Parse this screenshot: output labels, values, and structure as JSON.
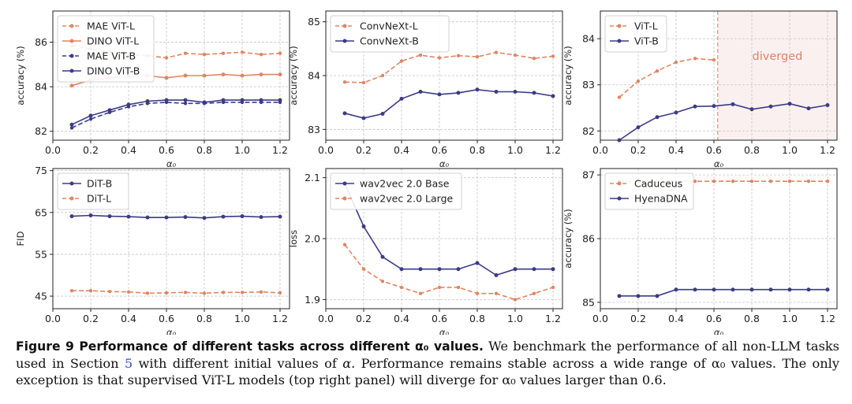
{
  "colors": {
    "orange": "#e08562",
    "navy": "#3b3b86",
    "diverged_fill": "#fbf0f0",
    "diverged_text": "#d98367"
  },
  "chart_data": [
    {
      "type": "line",
      "xlabel": "α₀",
      "ylabel": "accuracy (%)",
      "xlim": [
        0.0,
        1.25
      ],
      "ylim": [
        81.6,
        87.4
      ],
      "xticks": [
        0.0,
        0.2,
        0.4,
        0.6,
        0.8,
        1.0,
        1.2
      ],
      "yticks": [
        82,
        84,
        86
      ],
      "grid": true,
      "legend": "top-left",
      "x": [
        0.1,
        0.2,
        0.3,
        0.4,
        0.5,
        0.6,
        0.7,
        0.8,
        0.9,
        1.0,
        1.1,
        1.2
      ],
      "series": [
        {
          "name": "MAE ViT-L",
          "color": "orange",
          "dashed": true,
          "values": [
            85.85,
            85.7,
            85.55,
            85.45,
            85.4,
            85.3,
            85.5,
            85.45,
            85.5,
            85.55,
            85.45,
            85.5
          ]
        },
        {
          "name": "DINO ViT-L",
          "color": "orange",
          "dashed": false,
          "values": [
            84.05,
            84.3,
            84.4,
            84.45,
            84.5,
            84.4,
            84.5,
            84.5,
            84.55,
            84.5,
            84.55,
            84.55
          ]
        },
        {
          "name": "MAE ViT-B",
          "color": "navy",
          "dashed": true,
          "values": [
            82.15,
            82.55,
            82.85,
            83.1,
            83.25,
            83.3,
            83.25,
            83.25,
            83.3,
            83.3,
            83.3,
            83.3
          ]
        },
        {
          "name": "DINO ViT-B",
          "color": "navy",
          "dashed": false,
          "values": [
            82.3,
            82.7,
            82.95,
            83.2,
            83.35,
            83.4,
            83.4,
            83.3,
            83.4,
            83.4,
            83.4,
            83.4
          ]
        }
      ]
    },
    {
      "type": "line",
      "xlabel": "α₀",
      "ylabel": "accuracy (%)",
      "xlim": [
        0.0,
        1.25
      ],
      "ylim": [
        82.8,
        85.2
      ],
      "xticks": [
        0.0,
        0.2,
        0.4,
        0.6,
        0.8,
        1.0,
        1.2
      ],
      "yticks": [
        83,
        84,
        85
      ],
      "grid": true,
      "legend": "top-left",
      "x": [
        0.1,
        0.2,
        0.3,
        0.4,
        0.5,
        0.6,
        0.7,
        0.8,
        0.9,
        1.0,
        1.1,
        1.2
      ],
      "series": [
        {
          "name": "ConvNeXt-L",
          "color": "orange",
          "dashed": true,
          "values": [
            83.88,
            83.87,
            84.0,
            84.27,
            84.38,
            84.33,
            84.37,
            84.35,
            84.43,
            84.38,
            84.32,
            84.36
          ]
        },
        {
          "name": "ConvNeXt-B",
          "color": "navy",
          "dashed": false,
          "values": [
            83.3,
            83.21,
            83.29,
            83.57,
            83.7,
            83.65,
            83.68,
            83.74,
            83.7,
            83.7,
            83.68,
            83.62
          ]
        }
      ]
    },
    {
      "type": "line",
      "xlabel": "α₀",
      "ylabel": "accuracy (%)",
      "xlim": [
        0.0,
        1.25
      ],
      "ylim": [
        81.8,
        84.6
      ],
      "xticks": [
        0.0,
        0.2,
        0.4,
        0.6,
        0.8,
        1.0,
        1.2
      ],
      "yticks": [
        82,
        83,
        84
      ],
      "grid": true,
      "legend": "top-left",
      "x": [
        0.1,
        0.2,
        0.3,
        0.4,
        0.5,
        0.6,
        0.7,
        0.8,
        0.9,
        1.0,
        1.1,
        1.2
      ],
      "annotation": {
        "text": "diverged",
        "x_from": 0.62,
        "x_to": 1.25
      },
      "series": [
        {
          "name": "ViT-L",
          "color": "orange",
          "dashed": true,
          "x": [
            0.1,
            0.2,
            0.3,
            0.4,
            0.5,
            0.6
          ],
          "values": [
            82.73,
            83.08,
            83.3,
            83.49,
            83.57,
            83.54
          ]
        },
        {
          "name": "ViT-B",
          "color": "navy",
          "dashed": false,
          "values": [
            81.8,
            82.08,
            82.3,
            82.4,
            82.53,
            82.54,
            82.58,
            82.47,
            82.53,
            82.59,
            82.49,
            82.56
          ]
        }
      ]
    },
    {
      "type": "line",
      "xlabel": "α₀",
      "ylabel": "FID",
      "xlim": [
        0.0,
        1.25
      ],
      "ylim": [
        42.0,
        75.5
      ],
      "xticks": [
        0.0,
        0.2,
        0.4,
        0.6,
        0.8,
        1.0,
        1.2
      ],
      "yticks": [
        45,
        55,
        65,
        75
      ],
      "grid": true,
      "legend": "top-left",
      "x": [
        0.1,
        0.2,
        0.3,
        0.4,
        0.5,
        0.6,
        0.7,
        0.8,
        0.9,
        1.0,
        1.1,
        1.2
      ],
      "series": [
        {
          "name": "DiT-B",
          "color": "navy",
          "dashed": false,
          "values": [
            64.1,
            64.3,
            64.1,
            64.0,
            63.8,
            63.8,
            63.9,
            63.7,
            64.0,
            64.1,
            63.9,
            64.0
          ]
        },
        {
          "name": "DiT-L",
          "color": "orange",
          "dashed": true,
          "values": [
            46.3,
            46.3,
            46.1,
            46.0,
            45.7,
            45.8,
            45.9,
            45.7,
            45.9,
            45.9,
            46.0,
            45.8
          ]
        }
      ]
    },
    {
      "type": "line",
      "xlabel": "α₀",
      "ylabel": "loss",
      "xlim": [
        0.0,
        1.25
      ],
      "ylim": [
        1.885,
        2.115
      ],
      "xticks": [
        0.0,
        0.2,
        0.4,
        0.6,
        0.8,
        1.0,
        1.2
      ],
      "yticks": [
        1.9,
        2.0,
        2.1
      ],
      "grid": true,
      "legend": "top-left",
      "x": [
        0.1,
        0.2,
        0.3,
        0.4,
        0.5,
        0.6,
        0.7,
        0.8,
        0.9,
        1.0,
        1.1,
        1.2
      ],
      "series": [
        {
          "name": "wav2vec 2.0 Base",
          "color": "navy",
          "dashed": false,
          "values": [
            2.09,
            2.02,
            1.97,
            1.95,
            1.95,
            1.95,
            1.95,
            1.96,
            1.94,
            1.95,
            1.95,
            1.95
          ]
        },
        {
          "name": "wav2vec 2.0 Large",
          "color": "orange",
          "dashed": true,
          "values": [
            1.99,
            1.95,
            1.93,
            1.92,
            1.91,
            1.92,
            1.92,
            1.91,
            1.91,
            1.9,
            1.91,
            1.92
          ]
        }
      ]
    },
    {
      "type": "line",
      "xlabel": "α₀",
      "ylabel": "accuracy (%)",
      "xlim": [
        0.0,
        1.25
      ],
      "ylim": [
        84.9,
        87.1
      ],
      "xticks": [
        0.0,
        0.2,
        0.4,
        0.6,
        0.8,
        1.0,
        1.2
      ],
      "yticks": [
        85,
        86,
        87
      ],
      "grid": true,
      "legend": "top-left",
      "x": [
        0.1,
        0.2,
        0.3,
        0.4,
        0.5,
        0.6,
        0.7,
        0.8,
        0.9,
        1.0,
        1.1,
        1.2
      ],
      "series": [
        {
          "name": "Caduceus",
          "color": "orange",
          "dashed": true,
          "values": [
            86.9,
            86.9,
            86.9,
            86.9,
            86.9,
            86.9,
            86.9,
            86.9,
            86.9,
            86.9,
            86.9,
            86.9
          ]
        },
        {
          "name": "HyenaDNA",
          "color": "navy",
          "dashed": false,
          "values": [
            85.1,
            85.1,
            85.1,
            85.2,
            85.2,
            85.2,
            85.2,
            85.2,
            85.2,
            85.2,
            85.2,
            85.2
          ]
        }
      ]
    }
  ],
  "caption": {
    "label": "Figure 9  Performance of different tasks across different α₀ values.",
    "part1": " We benchmark the performance of all non-LLM tasks used in Section ",
    "section_ref": "5",
    "part2": " with different initial values of ",
    "alpha": "α",
    "part3": ". Performance remains stable across a wide range of α₀ values. The only exception is that supervised ViT-L models (top right panel) will diverge for α₀ values larger than 0.6."
  }
}
